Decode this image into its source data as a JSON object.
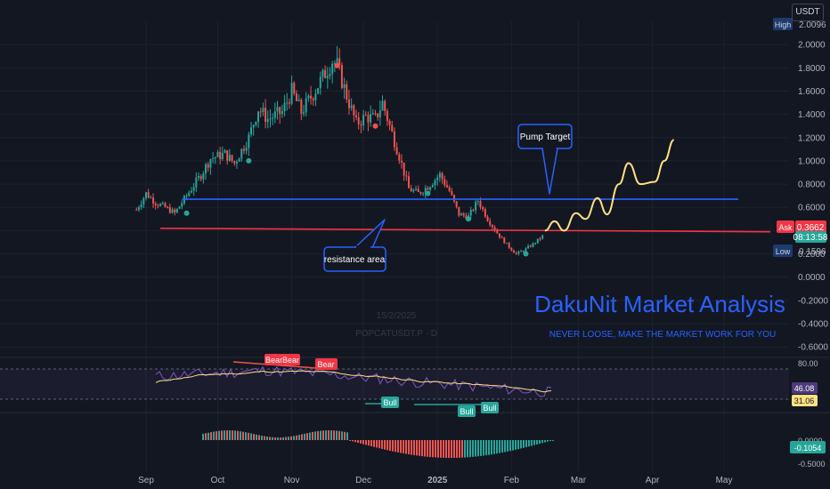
{
  "toolbar": {
    "currency": "USDT"
  },
  "watermark": {
    "date": "15/2/2025",
    "symbol": "POPCATUSDT.P · D"
  },
  "brand": {
    "title": "DakuNit Market Analysis",
    "tagline": "NEVER LOOSE, MAKE THE MARKET WORK FOR YOU"
  },
  "annotations": {
    "pump_target": "Pump Target",
    "resistance": "resistance area"
  },
  "price_tags": {
    "high_label": "High",
    "high_value": "2.0096",
    "ask_label": "Ask",
    "ask_value": "0.3662",
    "countdown": "08:13:58",
    "low_label": "Low",
    "low_value": "0.1596"
  },
  "rsi_tags": {
    "bearbear": "BearBear",
    "bear": "Bear",
    "bull_1": "Bull",
    "bull_2": "Bull",
    "bull_3": "Bull",
    "value_a": "46.08",
    "value_b": "31.06"
  },
  "macd_tags": {
    "value": "-0.1054"
  },
  "colors": {
    "up": "#26a69a",
    "down": "#ef5350",
    "blue_line": "#2962ff",
    "red_line": "#f23645",
    "projection": "#ffe082",
    "brand": "#2962ff",
    "rsi": "#7e57c2",
    "rsi_ma": "#ffe082"
  },
  "chart_data": {
    "type": "candlestick",
    "symbol": "POPCATUSDT.P",
    "interval": "D",
    "x_labels": [
      "Sep",
      "Oct",
      "Nov",
      "Dec",
      "2025",
      "Feb",
      "Mar",
      "Apr",
      "May"
    ],
    "y_ticks": [
      2.0,
      1.8,
      1.6,
      1.4,
      1.2,
      1.0,
      0.8,
      0.6,
      0.4,
      0.2,
      0.0,
      -0.2,
      -0.4,
      -0.6
    ],
    "ylim": [
      -0.66,
      2.2
    ],
    "price_path": [
      {
        "date": "2024-08-28",
        "close": 0.58
      },
      {
        "date": "2024-09-01",
        "close": 0.72
      },
      {
        "date": "2024-09-05",
        "close": 0.64
      },
      {
        "date": "2024-09-09",
        "close": 0.6
      },
      {
        "date": "2024-09-13",
        "close": 0.55
      },
      {
        "date": "2024-09-18",
        "close": 0.7
      },
      {
        "date": "2024-09-24",
        "close": 0.88
      },
      {
        "date": "2024-09-28",
        "close": 1.02
      },
      {
        "date": "2024-10-04",
        "close": 1.06
      },
      {
        "date": "2024-10-08",
        "close": 0.98
      },
      {
        "date": "2024-10-14",
        "close": 1.2
      },
      {
        "date": "2024-10-18",
        "close": 1.45
      },
      {
        "date": "2024-10-22",
        "close": 1.36
      },
      {
        "date": "2024-10-28",
        "close": 1.42
      },
      {
        "date": "2024-11-01",
        "close": 1.6
      },
      {
        "date": "2024-11-05",
        "close": 1.42
      },
      {
        "date": "2024-11-10",
        "close": 1.58
      },
      {
        "date": "2024-11-14",
        "close": 1.72
      },
      {
        "date": "2024-11-18",
        "close": 1.86
      },
      {
        "date": "2024-11-20",
        "close": 1.82
      },
      {
        "date": "2024-11-24",
        "close": 1.56
      },
      {
        "date": "2024-11-28",
        "close": 1.32
      },
      {
        "date": "2024-12-02",
        "close": 1.38
      },
      {
        "date": "2024-12-06",
        "close": 1.36
      },
      {
        "date": "2024-12-09",
        "close": 1.5
      },
      {
        "date": "2024-12-12",
        "close": 1.3
      },
      {
        "date": "2024-12-16",
        "close": 1.04
      },
      {
        "date": "2024-12-20",
        "close": 0.76
      },
      {
        "date": "2024-12-24",
        "close": 0.72
      },
      {
        "date": "2024-12-28",
        "close": 0.78
      },
      {
        "date": "2025-01-02",
        "close": 0.88
      },
      {
        "date": "2025-01-06",
        "close": 0.74
      },
      {
        "date": "2025-01-10",
        "close": 0.54
      },
      {
        "date": "2025-01-14",
        "close": 0.52
      },
      {
        "date": "2025-01-18",
        "close": 0.66
      },
      {
        "date": "2025-01-22",
        "close": 0.5
      },
      {
        "date": "2025-01-26",
        "close": 0.38
      },
      {
        "date": "2025-01-30",
        "close": 0.28
      },
      {
        "date": "2025-02-03",
        "close": 0.2
      },
      {
        "date": "2025-02-07",
        "close": 0.24
      },
      {
        "date": "2025-02-11",
        "close": 0.3
      },
      {
        "date": "2025-02-15",
        "close": 0.37
      }
    ],
    "projection": [
      {
        "date": "2025-02-15",
        "price": 0.4
      },
      {
        "date": "2025-02-19",
        "price": 0.48
      },
      {
        "date": "2025-02-23",
        "price": 0.4
      },
      {
        "date": "2025-02-28",
        "price": 0.55
      },
      {
        "date": "2025-03-04",
        "price": 0.5
      },
      {
        "date": "2025-03-09",
        "price": 0.68
      },
      {
        "date": "2025-03-13",
        "price": 0.54
      },
      {
        "date": "2025-03-18",
        "price": 0.8
      },
      {
        "date": "2025-03-22",
        "price": 0.98
      },
      {
        "date": "2025-03-27",
        "price": 0.8
      },
      {
        "date": "2025-04-02",
        "price": 0.82
      },
      {
        "date": "2025-04-06",
        "price": 1.0
      },
      {
        "date": "2025-04-10",
        "price": 1.18
      }
    ],
    "support_line": {
      "price": 0.67,
      "color": "blue"
    },
    "resistance_line": {
      "price_start": 0.42,
      "price_end": 0.39,
      "color": "red"
    },
    "rsi": {
      "levels": [
        80.0
      ],
      "current": 46.08,
      "ma": 31.06
    },
    "macd": {
      "ticks": [
        0.0,
        -0.5
      ],
      "current": -0.1054
    }
  }
}
